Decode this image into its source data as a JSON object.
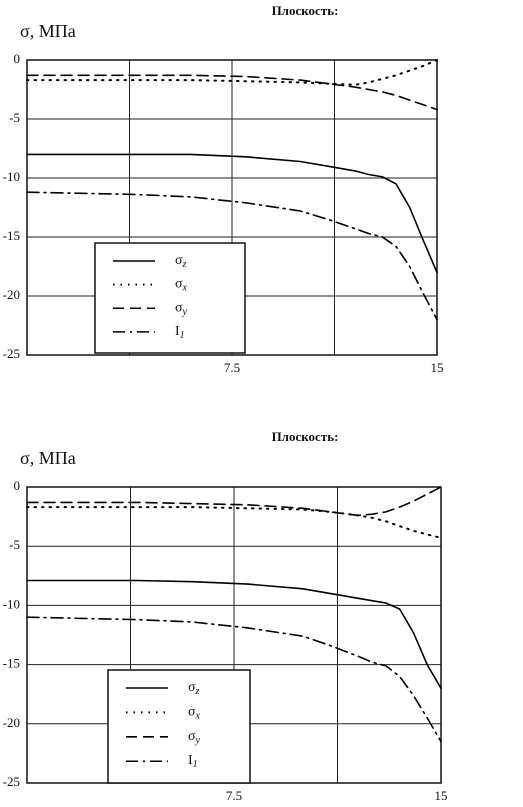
{
  "chart_data": [
    {
      "type": "line",
      "title": "Плоскость:",
      "y_label": "σ, МПа",
      "x": [
        0,
        2,
        4,
        6,
        8,
        10,
        11,
        12,
        12.5,
        13,
        13.5,
        14,
        14.5,
        15
      ],
      "xlim": [
        0,
        15
      ],
      "xticks": [
        7.5,
        15
      ],
      "xgrid_minor": [
        3.75,
        11.25
      ],
      "ylim": [
        -25,
        0
      ],
      "yticks": [
        0,
        -5,
        -10,
        -15,
        -20,
        -25
      ],
      "grid": true,
      "series": [
        {
          "name": "σz",
          "color": "#000000",
          "style": "solid",
          "values": [
            -8,
            -8,
            -8,
            -8,
            -8.2,
            -8.6,
            -9,
            -9.4,
            -9.7,
            -9.9,
            -10.5,
            -12.5,
            -15.3,
            -18
          ]
        },
        {
          "name": "σx",
          "color": "#000000",
          "style": "dotted",
          "values": [
            -1.7,
            -1.7,
            -1.7,
            -1.7,
            -1.8,
            -1.9,
            -2,
            -2.1,
            -1.9,
            -1.6,
            -1.3,
            -0.9,
            -0.5,
            0
          ]
        },
        {
          "name": "σy",
          "color": "#000000",
          "style": "dashed",
          "values": [
            -1.3,
            -1.3,
            -1.3,
            -1.3,
            -1.4,
            -1.7,
            -2,
            -2.3,
            -2.5,
            -2.7,
            -3,
            -3.4,
            -3.8,
            -4.2
          ]
        },
        {
          "name": "I1",
          "color": "#000000",
          "style": "dashdot",
          "values": [
            -11.2,
            -11.3,
            -11.4,
            -11.6,
            -12.1,
            -12.8,
            -13.5,
            -14.3,
            -14.7,
            -15,
            -15.8,
            -17.5,
            -19.8,
            -22
          ]
        }
      ]
    },
    {
      "type": "line",
      "title": "Плоскость:",
      "y_label": "σ, МПа",
      "x": [
        0,
        2,
        4,
        6,
        8,
        10,
        11,
        12,
        12.5,
        13,
        13.5,
        14,
        14.5,
        15
      ],
      "xlim": [
        0,
        15
      ],
      "xticks": [
        7.5,
        15
      ],
      "xgrid_minor": [
        3.75,
        11.25
      ],
      "ylim": [
        -25,
        0
      ],
      "yticks": [
        0,
        -5,
        -10,
        -15,
        -20,
        -25
      ],
      "grid": true,
      "series": [
        {
          "name": "σz",
          "color": "#000000",
          "style": "solid",
          "values": [
            -7.9,
            -7.9,
            -7.9,
            -8,
            -8.2,
            -8.6,
            -9,
            -9.4,
            -9.6,
            -9.8,
            -10.3,
            -12.3,
            -15,
            -17
          ]
        },
        {
          "name": "σx",
          "color": "#000000",
          "style": "dotted",
          "values": [
            -1.7,
            -1.7,
            -1.7,
            -1.7,
            -1.8,
            -1.9,
            -2.1,
            -2.4,
            -2.6,
            -2.9,
            -3.3,
            -3.7,
            -4,
            -4.3
          ]
        },
        {
          "name": "σy",
          "color": "#000000",
          "style": "dashed",
          "values": [
            -1.3,
            -1.3,
            -1.3,
            -1.4,
            -1.5,
            -1.8,
            -2.1,
            -2.4,
            -2.3,
            -2.1,
            -1.7,
            -1.2,
            -0.6,
            0
          ]
        },
        {
          "name": "I1",
          "color": "#000000",
          "style": "dashdot",
          "values": [
            -11,
            -11.1,
            -11.2,
            -11.4,
            -11.9,
            -12.6,
            -13.4,
            -14.3,
            -14.8,
            -15.1,
            -16,
            -17.6,
            -19.5,
            -21.5
          ]
        }
      ]
    }
  ]
}
